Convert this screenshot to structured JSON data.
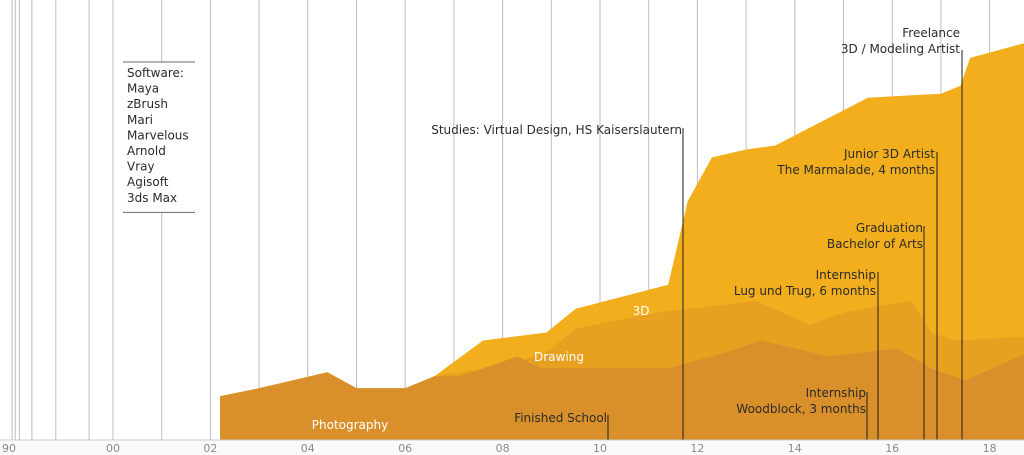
{
  "chart_data": {
    "type": "area",
    "x_tick_labels": [
      "90",
      "00",
      "02",
      "04",
      "06",
      "08",
      "10",
      "12",
      "14",
      "16",
      "18"
    ],
    "x_ticks": [
      1990,
      2000,
      2002,
      2004,
      2006,
      2008,
      2010,
      2012,
      2014,
      2016,
      2018
    ],
    "xlim": [
      1990,
      2018.8
    ],
    "ylim": [
      0,
      100
    ],
    "grid": true,
    "colors": {
      "three_d": "#F2AE1C",
      "drawing": "#E8A020",
      "photography": "#D9902A",
      "axis": "#c8c8c8",
      "gridline": "#bdbdbd"
    },
    "series": [
      {
        "name": "3D",
        "points": [
          [
            2002.2,
            11
          ],
          [
            2003,
            13
          ],
          [
            2004.4,
            17
          ],
          [
            2005,
            13
          ],
          [
            2006,
            13
          ],
          [
            2006.6,
            16
          ],
          [
            2007.6,
            25
          ],
          [
            2008.9,
            27
          ],
          [
            2009.5,
            33
          ],
          [
            2011.4,
            39
          ],
          [
            2011.8,
            60
          ],
          [
            2012.3,
            71
          ],
          [
            2013,
            73
          ],
          [
            2013.6,
            74
          ],
          [
            2015.5,
            86
          ],
          [
            2017,
            87
          ],
          [
            2017.4,
            89
          ],
          [
            2017.6,
            96
          ],
          [
            2018.8,
            100
          ]
        ]
      },
      {
        "name": "Drawing",
        "points": [
          [
            2002.2,
            11
          ],
          [
            2003,
            13
          ],
          [
            2004.4,
            17
          ],
          [
            2005,
            13
          ],
          [
            2006,
            13
          ],
          [
            2006.6,
            16
          ],
          [
            2007.1,
            17
          ],
          [
            2007.8,
            18
          ],
          [
            2008.9,
            22
          ],
          [
            2009.5,
            28
          ],
          [
            2011.2,
            32
          ],
          [
            2013.2,
            35
          ],
          [
            2014.3,
            29
          ],
          [
            2015,
            32
          ],
          [
            2016.4,
            35
          ],
          [
            2016.8,
            27
          ],
          [
            2017.3,
            25
          ],
          [
            2018.8,
            26
          ]
        ]
      },
      {
        "name": "Photography",
        "points": [
          [
            2002.2,
            11
          ],
          [
            2003,
            13
          ],
          [
            2004.4,
            17
          ],
          [
            2005,
            13
          ],
          [
            2006,
            13
          ],
          [
            2006.6,
            16
          ],
          [
            2007.1,
            16
          ],
          [
            2007.6,
            18
          ],
          [
            2008.3,
            21
          ],
          [
            2008.8,
            18
          ],
          [
            2010.3,
            18
          ],
          [
            2011.4,
            18
          ],
          [
            2012.6,
            22
          ],
          [
            2013.3,
            25
          ],
          [
            2014.7,
            21
          ],
          [
            2015.4,
            22
          ],
          [
            2016.1,
            23
          ],
          [
            2016.8,
            18
          ],
          [
            2017.5,
            15
          ],
          [
            2018.8,
            22
          ]
        ]
      }
    ],
    "layer_labels": {
      "three_d": "3D",
      "drawing": "Drawing",
      "photography": "Photography"
    },
    "annotations": [
      {
        "lines": [
          "Studies: Virtual Design, HS Kaiserslautern"
        ],
        "x": 2011.8
      },
      {
        "lines": [
          "Finished School"
        ],
        "x": 2010.2
      },
      {
        "lines": [
          "Freelance",
          "3D / Modeling Artist"
        ],
        "x": 2017.6
      },
      {
        "lines": [
          "Junior 3D Artist",
          "The Marmalade, 4 months"
        ],
        "x": 2017.0
      },
      {
        "lines": [
          "Graduation",
          "Bachelor of Arts"
        ],
        "x": 2016.8
      },
      {
        "lines": [
          "Internship",
          "Lug und Trug, 6 months"
        ],
        "x": 2015.8
      },
      {
        "lines": [
          "Internship",
          "Woodblock, 3 months"
        ],
        "x": 2015.6
      }
    ],
    "software": {
      "heading": "Software:",
      "items": [
        "Maya",
        "zBrush",
        "Mari",
        "Marvelous",
        "Arnold",
        "Vray",
        "Agisoft",
        "3ds Max"
      ]
    }
  }
}
